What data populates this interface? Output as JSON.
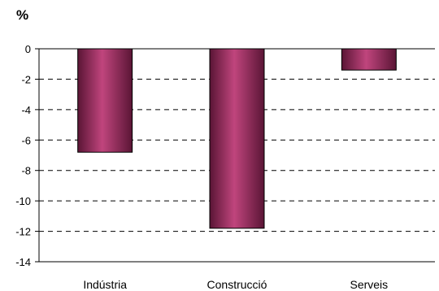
{
  "chart_data": {
    "type": "bar",
    "ylabel": "%",
    "categories": [
      "Indústria",
      "Construcció",
      "Serveis"
    ],
    "values": [
      -6.8,
      -11.8,
      -1.4
    ],
    "ylim": [
      -14,
      0
    ],
    "yticks": [
      0,
      -2,
      -4,
      -6,
      -8,
      -10,
      -12,
      -14
    ],
    "ytick_labels": [
      "0",
      "-2",
      "-4",
      "-6",
      "-8",
      "-10",
      "-12",
      "-14"
    ],
    "grid": "horizontal dashed",
    "legend": "none",
    "colors": {
      "bar": "#9b2e5f",
      "bar_highlight": "#c0457d",
      "bar_shadow": "#5a1535",
      "grid": "#000000"
    }
  }
}
